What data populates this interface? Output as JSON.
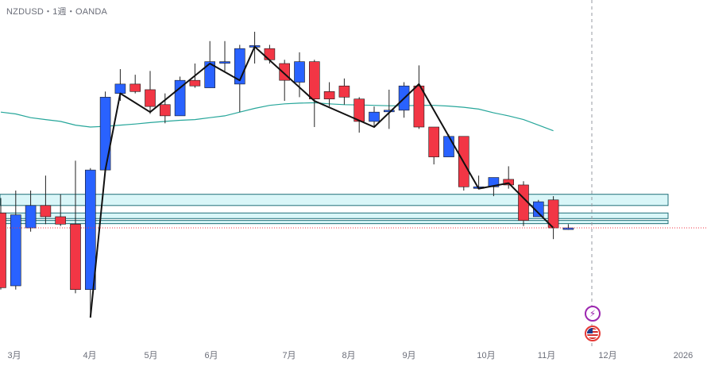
{
  "header": {
    "symbol_label": "NZDUSD・1週・OANDA"
  },
  "colors": {
    "up_candle": "#2962ff",
    "down_candle": "#f23645",
    "wick": "#222222",
    "moving_average": "#26a69a",
    "zigzag": "#111111",
    "zone_fill": "#d9f6f8",
    "zone_border": "#1f6f78",
    "last_price_line": "#f23645",
    "crosshair": "#9598a1"
  },
  "icons": {
    "event_1": "lightning-icon",
    "event_2": "us-flag-icon"
  },
  "chart_data": {
    "type": "candlestick",
    "timeframe": "weekly",
    "x_labels": [
      "3月",
      "4月",
      "5月",
      "6月",
      "7月",
      "8月",
      "9月",
      "10月",
      "11月",
      "12月",
      "2026"
    ],
    "candles": [
      {
        "i": 0,
        "o": 0.573,
        "h": 0.577,
        "l": 0.5525,
        "c": 0.553
      },
      {
        "i": 1,
        "o": 0.5535,
        "h": 0.579,
        "l": 0.5525,
        "c": 0.5725
      },
      {
        "i": 2,
        "o": 0.569,
        "h": 0.579,
        "l": 0.568,
        "c": 0.575
      },
      {
        "i": 3,
        "o": 0.575,
        "h": 0.583,
        "l": 0.57,
        "c": 0.572
      },
      {
        "i": 4,
        "o": 0.572,
        "h": 0.578,
        "l": 0.5695,
        "c": 0.57
      },
      {
        "i": 5,
        "o": 0.57,
        "h": 0.587,
        "l": 0.5515,
        "c": 0.5525
      },
      {
        "i": 6,
        "o": 0.5525,
        "h": 0.585,
        "l": 0.545,
        "c": 0.5845
      },
      {
        "i": 7,
        "o": 0.5845,
        "h": 0.6055,
        "l": 0.5845,
        "c": 0.604
      },
      {
        "i": 8,
        "o": 0.605,
        "h": 0.6115,
        "l": 0.603,
        "c": 0.6075
      },
      {
        "i": 9,
        "o": 0.6075,
        "h": 0.61,
        "l": 0.605,
        "c": 0.6055
      },
      {
        "i": 10,
        "o": 0.606,
        "h": 0.611,
        "l": 0.5995,
        "c": 0.6015
      },
      {
        "i": 11,
        "o": 0.602,
        "h": 0.605,
        "l": 0.597,
        "c": 0.599
      },
      {
        "i": 12,
        "o": 0.599,
        "h": 0.6095,
        "l": 0.599,
        "c": 0.6085
      },
      {
        "i": 13,
        "o": 0.6085,
        "h": 0.613,
        "l": 0.6065,
        "c": 0.607
      },
      {
        "i": 14,
        "o": 0.6065,
        "h": 0.619,
        "l": 0.6065,
        "c": 0.6135
      },
      {
        "i": 15,
        "o": 0.6135,
        "h": 0.619,
        "l": 0.611,
        "c": 0.6135
      },
      {
        "i": 16,
        "o": 0.6075,
        "h": 0.618,
        "l": 0.6,
        "c": 0.617
      },
      {
        "i": 17,
        "o": 0.6178,
        "h": 0.6215,
        "l": 0.613,
        "c": 0.6178
      },
      {
        "i": 18,
        "o": 0.617,
        "h": 0.618,
        "l": 0.613,
        "c": 0.614
      },
      {
        "i": 19,
        "o": 0.613,
        "h": 0.614,
        "l": 0.603,
        "c": 0.6085
      },
      {
        "i": 20,
        "o": 0.608,
        "h": 0.616,
        "l": 0.604,
        "c": 0.6135
      },
      {
        "i": 21,
        "o": 0.6135,
        "h": 0.614,
        "l": 0.596,
        "c": 0.6035
      },
      {
        "i": 22,
        "o": 0.6055,
        "h": 0.608,
        "l": 0.6015,
        "c": 0.6035
      },
      {
        "i": 23,
        "o": 0.607,
        "h": 0.609,
        "l": 0.602,
        "c": 0.604
      },
      {
        "i": 24,
        "o": 0.6035,
        "h": 0.604,
        "l": 0.5945,
        "c": 0.5975
      },
      {
        "i": 25,
        "o": 0.5975,
        "h": 0.6015,
        "l": 0.596,
        "c": 0.6
      },
      {
        "i": 26,
        "o": 0.6005,
        "h": 0.606,
        "l": 0.5955,
        "c": 0.6005
      },
      {
        "i": 27,
        "o": 0.6005,
        "h": 0.608,
        "l": 0.5985,
        "c": 0.607
      },
      {
        "i": 28,
        "o": 0.607,
        "h": 0.6125,
        "l": 0.5955,
        "c": 0.596
      },
      {
        "i": 29,
        "o": 0.596,
        "h": 0.596,
        "l": 0.586,
        "c": 0.588
      },
      {
        "i": 30,
        "o": 0.588,
        "h": 0.594,
        "l": 0.588,
        "c": 0.5935
      },
      {
        "i": 31,
        "o": 0.5935,
        "h": 0.5935,
        "l": 0.579,
        "c": 0.58
      },
      {
        "i": 32,
        "o": 0.58,
        "h": 0.583,
        "l": 0.5795,
        "c": 0.58
      },
      {
        "i": 33,
        "o": 0.58,
        "h": 0.5825,
        "l": 0.5775,
        "c": 0.5825
      },
      {
        "i": 34,
        "o": 0.582,
        "h": 0.5855,
        "l": 0.5795,
        "c": 0.5805
      },
      {
        "i": 35,
        "o": 0.5805,
        "h": 0.5815,
        "l": 0.5695,
        "c": 0.571
      },
      {
        "i": 36,
        "o": 0.572,
        "h": 0.5765,
        "l": 0.572,
        "c": 0.576
      },
      {
        "i": 37,
        "o": 0.5765,
        "h": 0.5775,
        "l": 0.566,
        "c": 0.569
      },
      {
        "i": 38,
        "o": 0.569,
        "h": 0.57,
        "l": 0.5685,
        "c": 0.569
      }
    ],
    "moving_average": [
      0.6,
      0.5995,
      0.5985,
      0.598,
      0.5975,
      0.5965,
      0.596,
      0.5962,
      0.5965,
      0.5968,
      0.5972,
      0.5975,
      0.5978,
      0.598,
      0.5985,
      0.599,
      0.6,
      0.601,
      0.6018,
      0.6022,
      0.6024,
      0.6025,
      0.6022,
      0.602,
      0.6019,
      0.6018,
      0.6017,
      0.6017,
      0.6018,
      0.6018,
      0.6016,
      0.6013,
      0.6008,
      0.5998,
      0.599,
      0.598,
      0.5965,
      0.595
    ],
    "zigzag": [
      [
        6,
        0.545
      ],
      [
        7,
        0.5845
      ],
      [
        8,
        0.605
      ],
      [
        10,
        0.6
      ],
      [
        14,
        0.613
      ],
      [
        16,
        0.6085
      ],
      [
        17,
        0.6175
      ],
      [
        21,
        0.603
      ],
      [
        25,
        0.596
      ],
      [
        28,
        0.6075
      ],
      [
        32,
        0.5795
      ],
      [
        34,
        0.581
      ],
      [
        37,
        0.569
      ]
    ],
    "zones": [
      {
        "top": 0.578,
        "bottom": 0.575
      },
      {
        "top": 0.573,
        "bottom": 0.5715
      },
      {
        "top": 0.571,
        "bottom": 0.5702
      }
    ],
    "last_price": 0.569,
    "legend": "none",
    "grid": false
  }
}
